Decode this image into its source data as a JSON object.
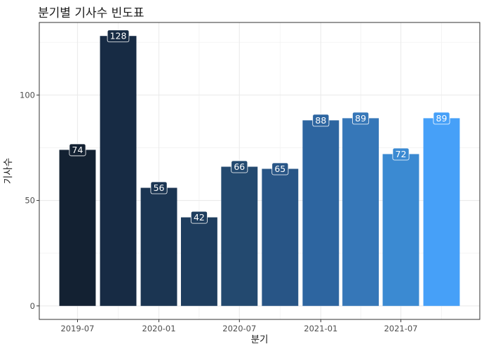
{
  "chart_data": {
    "type": "bar",
    "title": "분기별 기사수 빈도표",
    "xlabel": "분기",
    "ylabel": "기사수",
    "categories": [
      "2019 Q3",
      "2019 Q4",
      "2020 Q1",
      "2020 Q2",
      "2020 Q3",
      "2020 Q4",
      "2021 Q1",
      "2021 Q2",
      "2021 Q3",
      "2021 Q4"
    ],
    "x_dates": [
      "2019-07-01",
      "2019-10-01",
      "2020-01-01",
      "2020-04-01",
      "2020-07-01",
      "2020-10-01",
      "2021-01-01",
      "2021-04-01",
      "2021-07-01",
      "2021-10-01"
    ],
    "values": [
      74,
      128,
      56,
      42,
      66,
      65,
      88,
      89,
      72,
      89
    ],
    "x_ticks": [
      "2019-07",
      "2020-01",
      "2020-07",
      "2021-01",
      "2021-07"
    ],
    "y_ticks": [
      0,
      50,
      100
    ],
    "ylim": [
      -6.4,
      134.4
    ],
    "grid": true,
    "legend": "none",
    "colors": [
      "#132132",
      "#172b44",
      "#1b3552",
      "#1e3d5e",
      "#23496f",
      "#285586",
      "#2d65a0",
      "#3677b8",
      "#3b8ad2",
      "#46a0f8"
    ]
  }
}
